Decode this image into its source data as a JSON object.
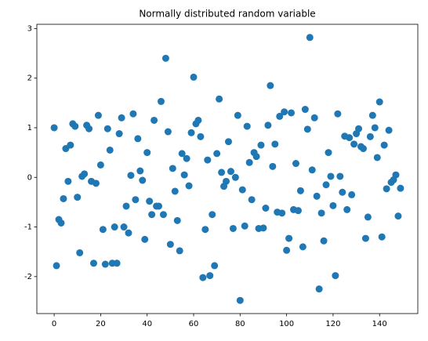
{
  "chart_data": {
    "type": "scatter",
    "title": "Normally distributed random variable",
    "color": "#1f77b4",
    "x": [
      0,
      1,
      2,
      3,
      4,
      5,
      6,
      7,
      8,
      9,
      10,
      11,
      12,
      13,
      14,
      15,
      16,
      17,
      18,
      19,
      20,
      21,
      22,
      23,
      24,
      25,
      26,
      27,
      28,
      29,
      30,
      31,
      32,
      33,
      34,
      35,
      36,
      37,
      38,
      39,
      40,
      41,
      42,
      43,
      44,
      45,
      46,
      47,
      48,
      49,
      50,
      51,
      52,
      53,
      54,
      55,
      56,
      57,
      58,
      59,
      60,
      61,
      62,
      63,
      64,
      65,
      66,
      67,
      68,
      69,
      70,
      71,
      72,
      73,
      74,
      75,
      76,
      77,
      78,
      79,
      80,
      81,
      82,
      83,
      84,
      85,
      86,
      87,
      88,
      89,
      90,
      91,
      92,
      93,
      94,
      95,
      96,
      97,
      98,
      99,
      100,
      101,
      102,
      103,
      104,
      105,
      106,
      107,
      108,
      109,
      110,
      111,
      112,
      113,
      114,
      115,
      116,
      117,
      118,
      119,
      120,
      121,
      122,
      123,
      124,
      125,
      126,
      127,
      128,
      129,
      130,
      131,
      132,
      133,
      134,
      135,
      136,
      137,
      138,
      139,
      140,
      141,
      142,
      143,
      144,
      145,
      146,
      147,
      148,
      149
    ],
    "values": [
      1.0,
      -1.78,
      -0.85,
      -0.92,
      -0.43,
      0.58,
      -0.08,
      0.65,
      1.08,
      1.03,
      -0.4,
      -1.52,
      0.02,
      0.07,
      1.05,
      0.98,
      -0.08,
      -1.73,
      -0.12,
      1.25,
      0.25,
      -1.05,
      -1.75,
      0.98,
      0.55,
      -1.73,
      -1.0,
      -1.73,
      0.88,
      1.2,
      -1.0,
      -0.58,
      -1.12,
      0.04,
      1.28,
      -0.45,
      0.78,
      0.13,
      -0.06,
      -1.25,
      0.5,
      -0.48,
      -0.75,
      1.15,
      -0.58,
      -0.58,
      1.53,
      -0.75,
      2.4,
      0.92,
      -1.35,
      0.18,
      -0.28,
      -0.87,
      -1.48,
      0.48,
      0.05,
      0.38,
      -0.17,
      0.9,
      2.02,
      1.08,
      1.15,
      0.82,
      -2.02,
      -1.05,
      0.35,
      -1.98,
      -0.75,
      -1.78,
      0.48,
      1.58,
      0.1,
      -0.18,
      -0.08,
      0.72,
      0.12,
      -1.03,
      0.0,
      1.25,
      -2.48,
      -0.25,
      -0.98,
      1.03,
      0.3,
      -0.45,
      0.5,
      0.42,
      -1.03,
      0.65,
      -1.02,
      -0.62,
      1.05,
      1.85,
      0.22,
      0.67,
      -0.7,
      1.23,
      -0.72,
      1.32,
      -1.47,
      -1.23,
      1.3,
      -0.65,
      0.28,
      -0.67,
      -0.27,
      -1.4,
      1.37,
      0.97,
      2.82,
      0.15,
      1.2,
      -0.38,
      -2.25,
      -0.72,
      -1.28,
      -0.15,
      0.5,
      0.02,
      -0.57,
      -1.98,
      1.28,
      0.02,
      -0.3,
      0.83,
      -0.65,
      0.8,
      -0.35,
      0.67,
      0.88,
      0.98,
      0.62,
      0.58,
      -1.23,
      -0.8,
      0.82,
      1.25,
      1.0,
      0.4,
      1.52,
      -1.2,
      0.65,
      -0.23,
      0.95,
      -0.1,
      -0.05,
      0.05,
      -0.78,
      -0.22
    ],
    "xlim": [
      -7.45,
      156.45
    ],
    "xticks": [
      0,
      20,
      40,
      60,
      80,
      100,
      120,
      140
    ],
    "ylim": [
      -2.745,
      3.085
    ],
    "yticks": [
      -2,
      -1,
      0,
      1,
      2,
      3
    ]
  }
}
